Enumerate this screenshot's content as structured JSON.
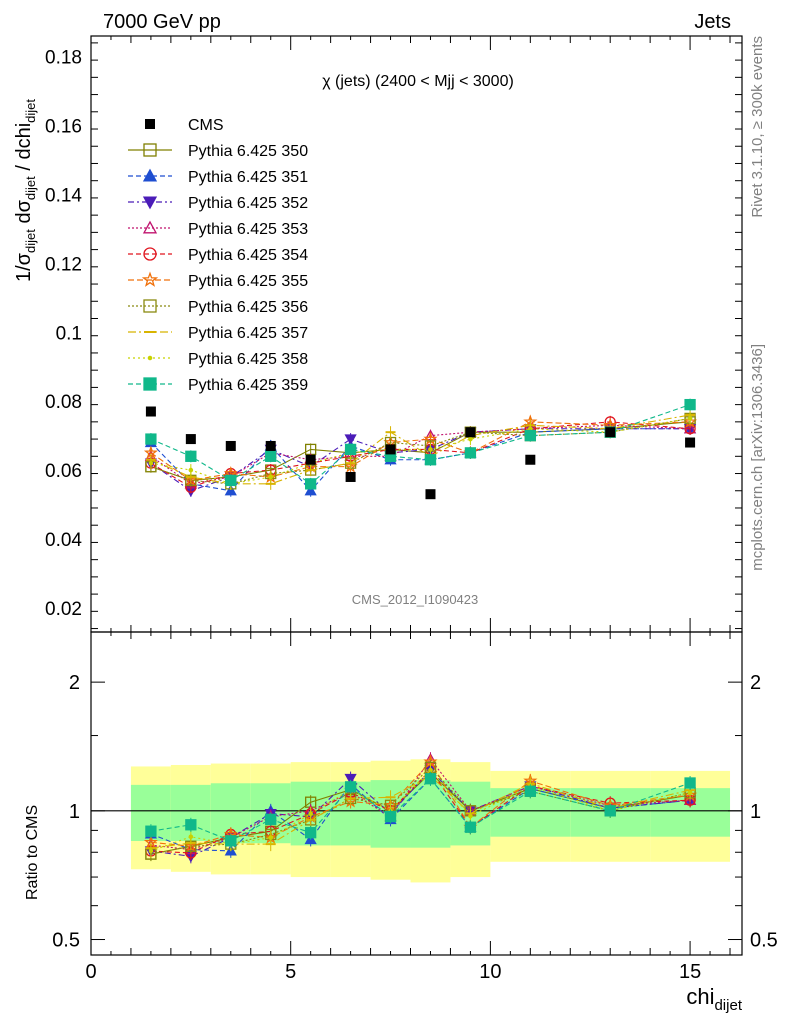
{
  "header": {
    "left": "7000 GeV pp",
    "right": "Jets"
  },
  "side_text": {
    "rivet": "Rivet 3.1.10, ≥ 300k events",
    "mcplots": "mcplots.cern.ch [arXiv:1306.3436]"
  },
  "watermark": "CMS_2012_I1090423",
  "axes": {
    "ylabel_top_parts": [
      "1/σ",
      "dijet",
      " dσ",
      "dijet",
      " / dchi",
      "dijet"
    ],
    "ylabel_bottom": "Ratio to CMS",
    "xlabel_main": "chi",
    "xlabel_sub": "dijet"
  },
  "chart_data": {
    "type": "scatter",
    "title": "χ (jets) (2400 < Mjj < 3000)",
    "xlim": [
      0,
      16.3
    ],
    "top_ylim": [
      0.013,
      0.186
    ],
    "top_yticks": [
      "0.02",
      "0.04",
      "0.06",
      "0.08",
      "0.1",
      "0.12",
      "0.14",
      "0.16",
      "0.18"
    ],
    "ratio_ylim": [
      0.46,
      2.62
    ],
    "ratio_log_scale": true,
    "ratio_yticks": [
      "0.5",
      "1",
      "2"
    ],
    "xticks": [
      "0",
      "5",
      "10",
      "15"
    ],
    "x": [
      1.5,
      2.5,
      3.5,
      4.5,
      5.5,
      6.5,
      7.5,
      8.5,
      9.5,
      11,
      13,
      15
    ],
    "bin_edges": [
      1,
      2,
      3,
      4,
      5,
      6,
      7,
      8,
      9,
      10,
      12,
      14,
      16
    ],
    "cms": [
      0.077,
      0.069,
      0.067,
      0.067,
      0.063,
      0.058,
      0.066,
      0.053,
      0.071,
      0.063,
      0.071,
      0.068
    ],
    "band_inner": [
      0.15,
      0.15,
      0.16,
      0.16,
      0.17,
      0.17,
      0.18,
      0.18,
      0.17,
      0.13,
      0.13,
      0.13
    ],
    "band_outer": [
      0.27,
      0.28,
      0.29,
      0.29,
      0.3,
      0.3,
      0.31,
      0.32,
      0.3,
      0.24,
      0.24,
      0.24
    ],
    "series": [
      {
        "name": "Pythia 6.425 350",
        "color": "#808000",
        "marker": "open-square",
        "dash": "",
        "values": [
          0.061,
          0.057,
          0.058,
          0.06,
          0.066,
          0.065,
          0.066,
          0.065,
          0.071,
          0.071,
          0.072,
          0.074
        ]
      },
      {
        "name": "Pythia 6.425 351",
        "color": "#1f4ed1",
        "marker": "triangle-up",
        "dash": "5,3",
        "values": [
          0.068,
          0.056,
          0.054,
          0.067,
          0.054,
          0.067,
          0.063,
          0.063,
          0.065,
          0.071,
          0.072,
          0.072
        ]
      },
      {
        "name": "Pythia 6.425 352",
        "color": "#4b1cb8",
        "marker": "triangle-down",
        "dash": "6,3,2,3",
        "values": [
          0.062,
          0.054,
          0.058,
          0.066,
          0.061,
          0.069,
          0.065,
          0.066,
          0.071,
          0.072,
          0.072,
          0.072
        ]
      },
      {
        "name": "Pythia 6.425 353",
        "color": "#c0136e",
        "marker": "open-triangle-up",
        "dash": "2,2",
        "values": [
          0.064,
          0.056,
          0.058,
          0.065,
          0.063,
          0.064,
          0.064,
          0.07,
          0.071,
          0.072,
          0.073,
          0.072
        ]
      },
      {
        "name": "Pythia 6.425 354",
        "color": "#e0141e",
        "marker": "open-circle",
        "dash": "5,3",
        "values": [
          0.062,
          0.055,
          0.059,
          0.06,
          0.062,
          0.064,
          0.066,
          0.066,
          0.065,
          0.072,
          0.074,
          0.072
        ]
      },
      {
        "name": "Pythia 6.425 355",
        "color": "#f0700a",
        "marker": "open-star",
        "dash": "6,3",
        "values": [
          0.065,
          0.057,
          0.059,
          0.058,
          0.061,
          0.061,
          0.068,
          0.069,
          0.065,
          0.074,
          0.073,
          0.074
        ]
      },
      {
        "name": "Pythia 6.425 356",
        "color": "#8a8a10",
        "marker": "open-square",
        "dash": "2,2",
        "values": [
          0.061,
          0.057,
          0.056,
          0.059,
          0.06,
          0.062,
          0.068,
          0.067,
          0.071,
          0.07,
          0.071,
          0.075
        ]
      },
      {
        "name": "Pythia 6.425 357",
        "color": "#d8b400",
        "marker": "dash",
        "dash": "8,3,2,3",
        "values": [
          0.063,
          0.058,
          0.056,
          0.056,
          0.06,
          0.062,
          0.071,
          0.064,
          0.07,
          0.073,
          0.072,
          0.076
        ]
      },
      {
        "name": "Pythia 6.425 358",
        "color": "#c8d200",
        "marker": "small-dot",
        "dash": "2,3",
        "values": [
          0.062,
          0.06,
          0.056,
          0.058,
          0.062,
          0.065,
          0.066,
          0.066,
          0.069,
          0.072,
          0.071,
          0.075
        ]
      },
      {
        "name": "Pythia 6.425 359",
        "color": "#10b88a",
        "marker": "filled-square",
        "dash": "5,3",
        "values": [
          0.069,
          0.064,
          0.057,
          0.064,
          0.056,
          0.066,
          0.064,
          0.063,
          0.065,
          0.07,
          0.071,
          0.079
        ]
      }
    ]
  },
  "colors": {
    "band_outer": "#ffff99",
    "band_inner": "#99ff99",
    "cms": "#000000"
  }
}
